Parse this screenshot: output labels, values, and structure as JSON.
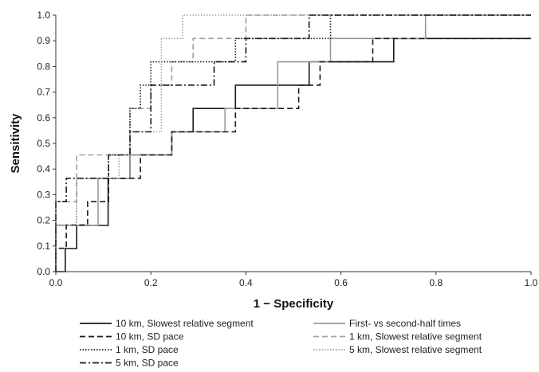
{
  "chart_data": {
    "type": "line",
    "title": "",
    "xlabel": "1 − Specificity",
    "ylabel": "Sensitivity",
    "xlim": [
      0,
      1
    ],
    "ylim": [
      0,
      1
    ],
    "x_ticks": [
      "0.0",
      "0.2",
      "0.4",
      "0.6",
      "0.8",
      "1.0"
    ],
    "y_ticks": [
      "0.0",
      "0.1",
      "0.2",
      "0.3",
      "0.4",
      "0.5",
      "0.6",
      "0.7",
      "0.8",
      "0.9",
      "1.0"
    ],
    "grid": false,
    "legend_position": "bottom",
    "series": [
      {
        "name": "10 km, Slowest relative segment",
        "color": "#1a1a1a",
        "dash": "solid",
        "points": [
          [
            0.0,
            0.0
          ],
          [
            0.02,
            0.0
          ],
          [
            0.02,
            0.09
          ],
          [
            0.044,
            0.09
          ],
          [
            0.044,
            0.18
          ],
          [
            0.11,
            0.18
          ],
          [
            0.11,
            0.364
          ],
          [
            0.156,
            0.364
          ],
          [
            0.156,
            0.455
          ],
          [
            0.244,
            0.455
          ],
          [
            0.244,
            0.545
          ],
          [
            0.289,
            0.545
          ],
          [
            0.289,
            0.636
          ],
          [
            0.378,
            0.636
          ],
          [
            0.378,
            0.727
          ],
          [
            0.533,
            0.727
          ],
          [
            0.533,
            0.818
          ],
          [
            0.711,
            0.818
          ],
          [
            0.711,
            0.909
          ],
          [
            1.0,
            0.909
          ]
        ]
      },
      {
        "name": "First- vs second-half times",
        "color": "#999999",
        "dash": "solid",
        "points": [
          [
            0.0,
            0.0
          ],
          [
            0.0,
            0.18
          ],
          [
            0.089,
            0.18
          ],
          [
            0.089,
            0.364
          ],
          [
            0.156,
            0.364
          ],
          [
            0.156,
            0.455
          ],
          [
            0.244,
            0.455
          ],
          [
            0.244,
            0.545
          ],
          [
            0.356,
            0.545
          ],
          [
            0.356,
            0.636
          ],
          [
            0.467,
            0.636
          ],
          [
            0.467,
            0.818
          ],
          [
            0.578,
            0.818
          ],
          [
            0.578,
            0.909
          ],
          [
            0.778,
            0.909
          ],
          [
            0.778,
            1.0
          ],
          [
            1.0,
            1.0
          ]
        ]
      },
      {
        "name": "10 km, SD pace",
        "color": "#1a1a1a",
        "dash": "dashed",
        "points": [
          [
            0.0,
            0.0
          ],
          [
            0.0,
            0.091
          ],
          [
            0.022,
            0.091
          ],
          [
            0.022,
            0.182
          ],
          [
            0.067,
            0.182
          ],
          [
            0.067,
            0.273
          ],
          [
            0.111,
            0.273
          ],
          [
            0.111,
            0.364
          ],
          [
            0.178,
            0.364
          ],
          [
            0.178,
            0.455
          ],
          [
            0.244,
            0.455
          ],
          [
            0.244,
            0.545
          ],
          [
            0.378,
            0.545
          ],
          [
            0.378,
            0.636
          ],
          [
            0.511,
            0.636
          ],
          [
            0.511,
            0.727
          ],
          [
            0.556,
            0.727
          ],
          [
            0.556,
            0.818
          ],
          [
            0.667,
            0.818
          ],
          [
            0.667,
            0.909
          ],
          [
            1.0,
            0.909
          ]
        ]
      },
      {
        "name": "1 km, Slowest relative segment",
        "color": "#a0a0a0",
        "dash": "dashed",
        "points": [
          [
            0.0,
            0.0
          ],
          [
            0.0,
            0.273
          ],
          [
            0.044,
            0.273
          ],
          [
            0.044,
            0.455
          ],
          [
            0.156,
            0.455
          ],
          [
            0.156,
            0.636
          ],
          [
            0.2,
            0.636
          ],
          [
            0.2,
            0.727
          ],
          [
            0.244,
            0.727
          ],
          [
            0.244,
            0.818
          ],
          [
            0.289,
            0.818
          ],
          [
            0.289,
            0.909
          ],
          [
            0.4,
            0.909
          ],
          [
            0.4,
            1.0
          ],
          [
            1.0,
            1.0
          ]
        ]
      },
      {
        "name": "1 km, SD pace",
        "color": "#1a1a1a",
        "dash": "dotted",
        "points": [
          [
            0.0,
            0.0
          ],
          [
            0.0,
            0.182
          ],
          [
            0.044,
            0.182
          ],
          [
            0.044,
            0.364
          ],
          [
            0.111,
            0.364
          ],
          [
            0.111,
            0.455
          ],
          [
            0.156,
            0.455
          ],
          [
            0.156,
            0.636
          ],
          [
            0.178,
            0.636
          ],
          [
            0.178,
            0.727
          ],
          [
            0.2,
            0.727
          ],
          [
            0.2,
            0.818
          ],
          [
            0.378,
            0.818
          ],
          [
            0.378,
            0.909
          ],
          [
            0.578,
            0.909
          ],
          [
            0.578,
            1.0
          ],
          [
            1.0,
            1.0
          ]
        ]
      },
      {
        "name": "5 km, Slowest relative segment",
        "color": "#a0a0a0",
        "dash": "dotted",
        "points": [
          [
            0.0,
            0.0
          ],
          [
            0.0,
            0.182
          ],
          [
            0.044,
            0.182
          ],
          [
            0.044,
            0.364
          ],
          [
            0.133,
            0.364
          ],
          [
            0.133,
            0.455
          ],
          [
            0.156,
            0.455
          ],
          [
            0.156,
            0.545
          ],
          [
            0.222,
            0.545
          ],
          [
            0.222,
            0.727
          ],
          [
            0.222,
            0.818
          ],
          [
            0.222,
            0.909
          ],
          [
            0.267,
            0.909
          ],
          [
            0.267,
            1.0
          ],
          [
            1.0,
            1.0
          ]
        ]
      },
      {
        "name": "5 km, SD pace",
        "color": "#1a1a1a",
        "dash": "dashdot",
        "points": [
          [
            0.0,
            0.0
          ],
          [
            0.0,
            0.273
          ],
          [
            0.022,
            0.273
          ],
          [
            0.022,
            0.364
          ],
          [
            0.111,
            0.364
          ],
          [
            0.111,
            0.455
          ],
          [
            0.156,
            0.455
          ],
          [
            0.156,
            0.545
          ],
          [
            0.2,
            0.545
          ],
          [
            0.2,
            0.727
          ],
          [
            0.333,
            0.727
          ],
          [
            0.333,
            0.818
          ],
          [
            0.4,
            0.818
          ],
          [
            0.4,
            0.909
          ],
          [
            0.533,
            0.909
          ],
          [
            0.533,
            1.0
          ],
          [
            1.0,
            1.0
          ]
        ]
      }
    ]
  }
}
